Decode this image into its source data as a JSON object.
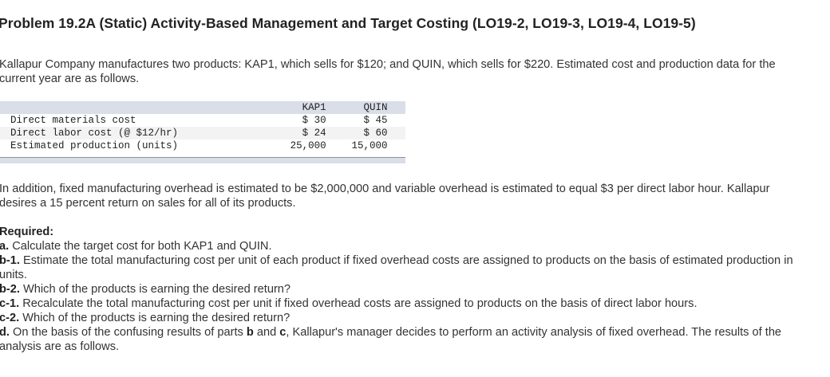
{
  "title": "Problem 19.2A (Static) Activity-Based Management and Target Costing (LO19-2, LO19-3, LO19-4, LO19-5)",
  "intro": "Kallapur Company manufactures two products: KAP1, which sells for $120; and QUIN, which sells for $220. Estimated cost and production data for the current year are as follows.",
  "table": {
    "headers": [
      "",
      "KAP1",
      "QUIN"
    ],
    "rows": [
      {
        "label": "Direct materials cost",
        "kap1": "$ 30",
        "quin": "$ 45"
      },
      {
        "label": "Direct labor cost (@ $12/hr)",
        "kap1": "$ 24",
        "quin": "$ 60"
      },
      {
        "label": "Estimated production (units)",
        "kap1": "25,000",
        "quin": "15,000"
      }
    ]
  },
  "addition": "In addition, fixed manufacturing overhead is estimated to be $2,000,000 and variable overhead is estimated to equal $3 per direct labor hour. Kallapur desires a 15 percent return on sales for all of its products.",
  "required": {
    "heading": "Required:",
    "items": [
      {
        "label": "a.",
        "text": " Calculate the target cost for both KAP1 and QUIN."
      },
      {
        "label": "b-1.",
        "text": " Estimate the total manufacturing cost per unit of each product if fixed overhead costs are assigned to products on the basis of estimated production in units."
      },
      {
        "label": "b-2.",
        "text": " Which of the products is earning the desired return?"
      },
      {
        "label": "c-1.",
        "text": " Recalculate the total manufacturing cost per unit if fixed overhead costs are assigned to products on the basis of direct labor hours."
      },
      {
        "label": "c-2.",
        "text": " Which of the products is earning the desired return?"
      },
      {
        "label": "d.",
        "text_before": " On the basis of the confusing results of parts ",
        "bold_b": "b",
        "text_mid": " and ",
        "bold_c": "c",
        "text_after": ", Kallapur's manager decides to perform an activity analysis of fixed overhead. The results of the analysis are as follows."
      }
    ]
  }
}
